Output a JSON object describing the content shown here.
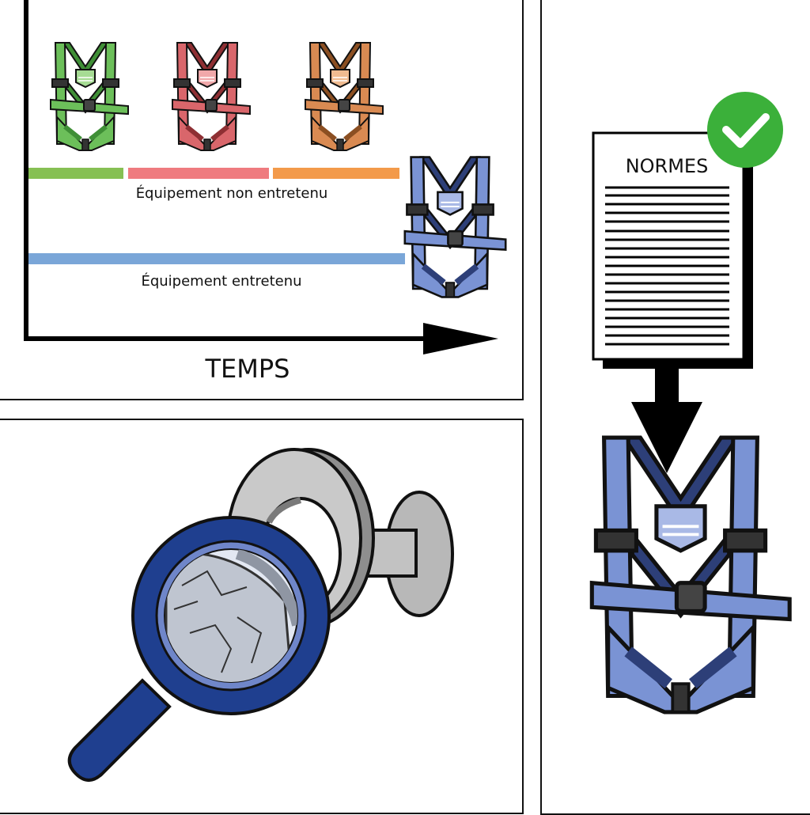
{
  "timeline": {
    "label_not_maintained": "Équipement non entretenu",
    "label_maintained": "Équipement entretenu",
    "axis_label": "TEMPS"
  },
  "standards": {
    "document_title": "NORMES"
  },
  "colors": {
    "harness_green": "#6cbf5a",
    "harness_red": "#d9666b",
    "harness_orange": "#d98a52",
    "harness_blue": "#7a93d4",
    "bar_green": "#86c053",
    "bar_red": "#ef7b7f",
    "bar_orange": "#f39a4a",
    "bar_blue": "#7aa6d8",
    "check_green": "#3bb03a",
    "magnifier_blue": "#1f3f8f"
  }
}
